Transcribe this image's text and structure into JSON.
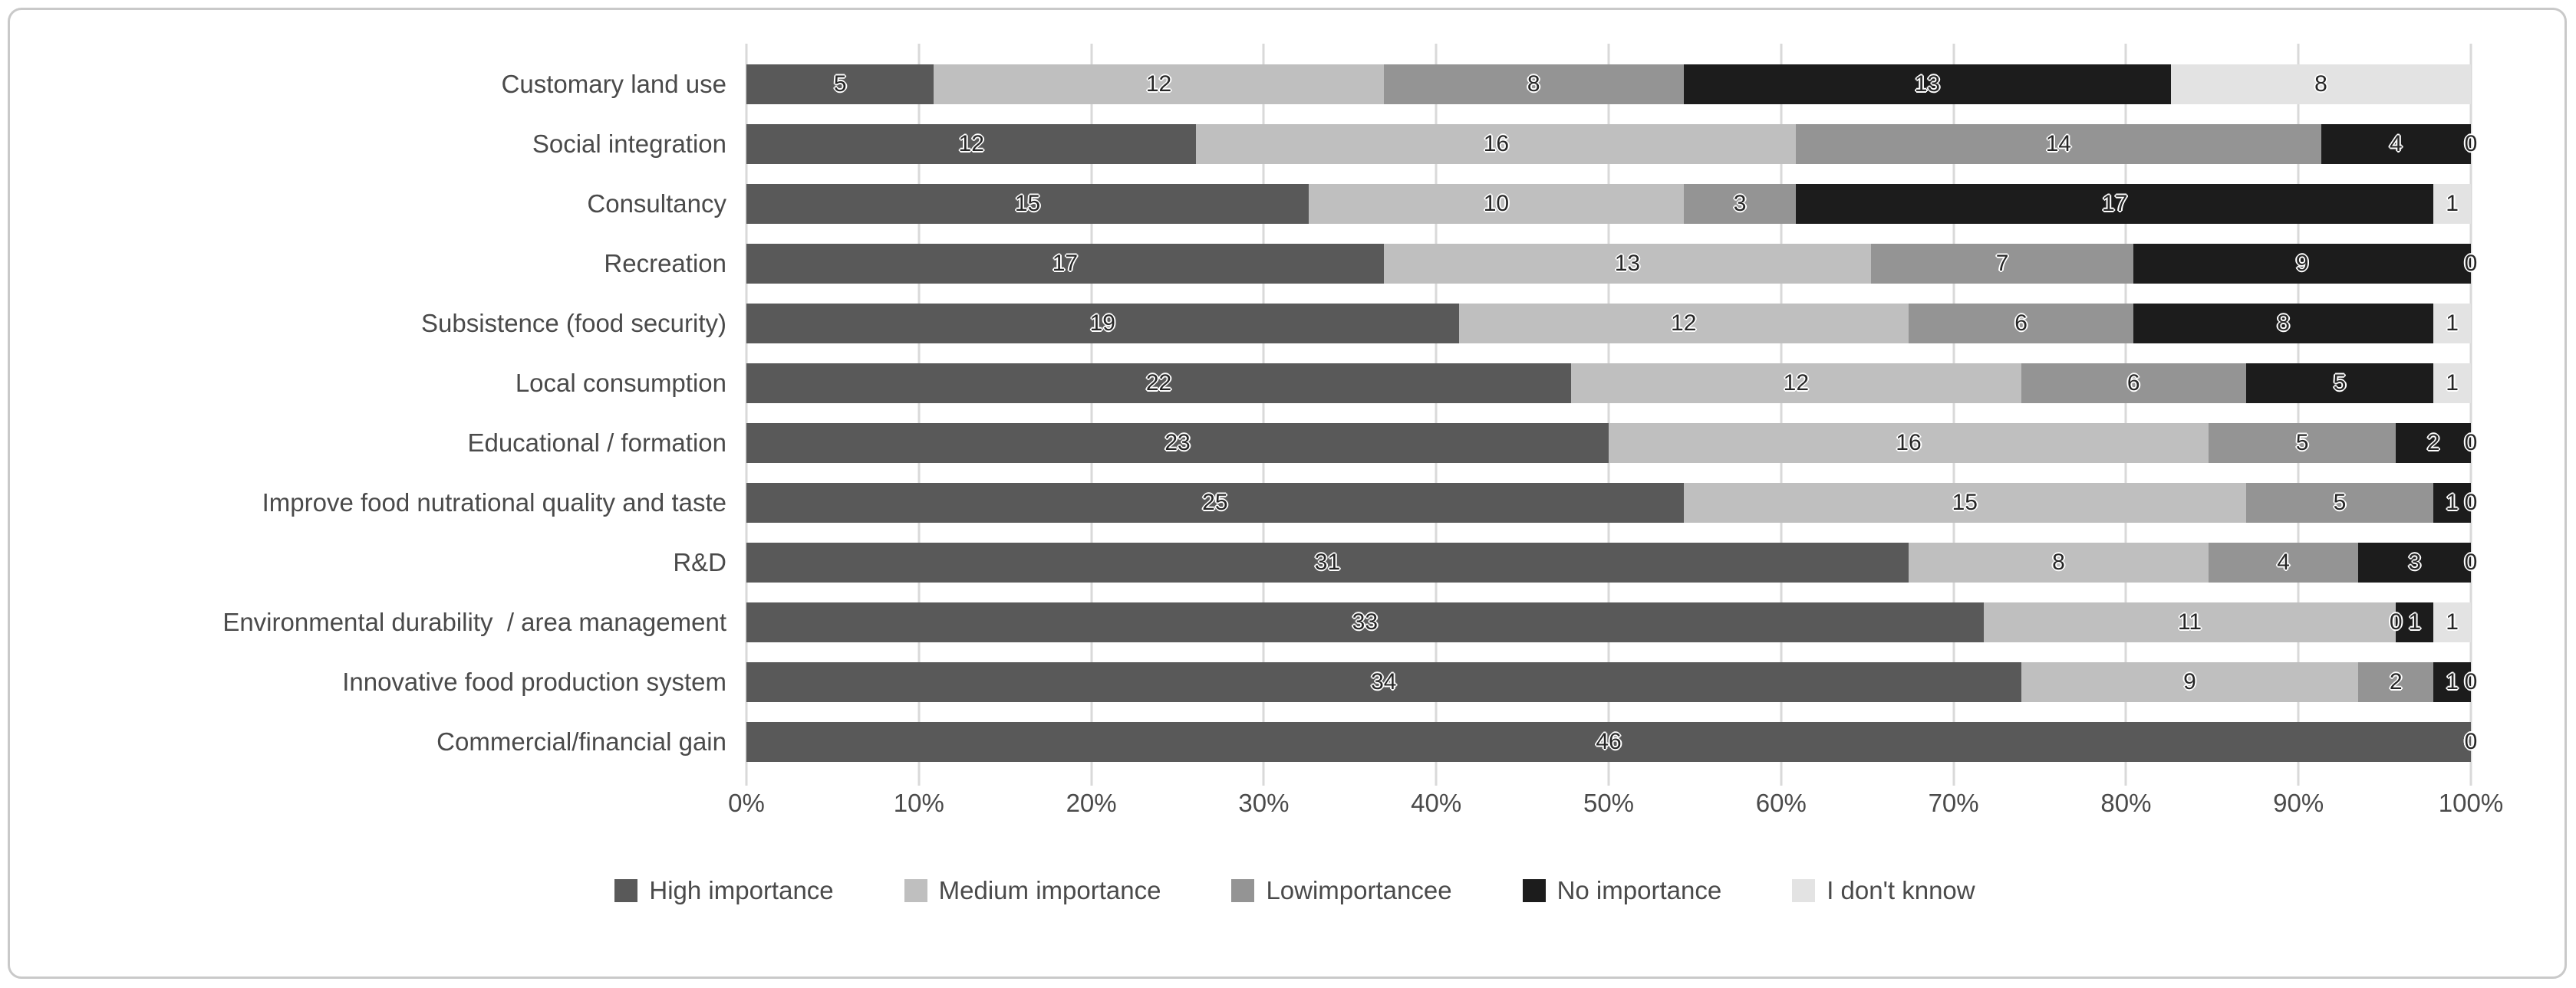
{
  "figure": {
    "background": "#ffffff",
    "border_color": "#c9c9c9"
  },
  "chart_data": {
    "type": "bar",
    "variant": "horizontal-stacked-100pct",
    "title": "",
    "xlabel": "",
    "ylabel": "",
    "row_total": 46,
    "grid": true,
    "gridline_color": "#d9d9d9",
    "axis_text_color": "#4a4a4a",
    "data_label_color": "#262626",
    "legend_position": "bottom",
    "categories": [
      "Customary land use",
      "Social integration",
      "Consultancy",
      "Recreation",
      "Subsistence (food security)",
      "Local consumption",
      "Educational / formation",
      "Improve food nutrational quality and taste",
      "R&D",
      "Environmental durability  / area management",
      "Innovative food production system",
      "Commercial/financial gain"
    ],
    "series": [
      {
        "name": "High importance",
        "color": "#595959",
        "values": [
          5,
          12,
          15,
          17,
          19,
          22,
          23,
          25,
          31,
          33,
          34,
          46
        ]
      },
      {
        "name": "Medium importance",
        "color": "#bfbfbf",
        "values": [
          12,
          16,
          10,
          13,
          12,
          12,
          16,
          15,
          8,
          11,
          9,
          0
        ]
      },
      {
        "name": "Lowimportancee",
        "color": "#949494",
        "values": [
          8,
          14,
          3,
          7,
          6,
          6,
          5,
          5,
          4,
          0,
          2,
          0
        ]
      },
      {
        "name": "No importance",
        "color": "#1c1c1c",
        "values": [
          13,
          4,
          17,
          9,
          8,
          5,
          2,
          1,
          3,
          1,
          1,
          0
        ]
      },
      {
        "name": "I don't knnow",
        "color": "#e3e3e3",
        "values": [
          8,
          0,
          1,
          0,
          1,
          1,
          0,
          0,
          0,
          1,
          0,
          0
        ]
      }
    ],
    "x_axis": {
      "min": 0,
      "max": 100,
      "ticks": [
        "0%",
        "10%",
        "20%",
        "30%",
        "40%",
        "50%",
        "60%",
        "70%",
        "80%",
        "90%",
        "100%"
      ]
    }
  }
}
